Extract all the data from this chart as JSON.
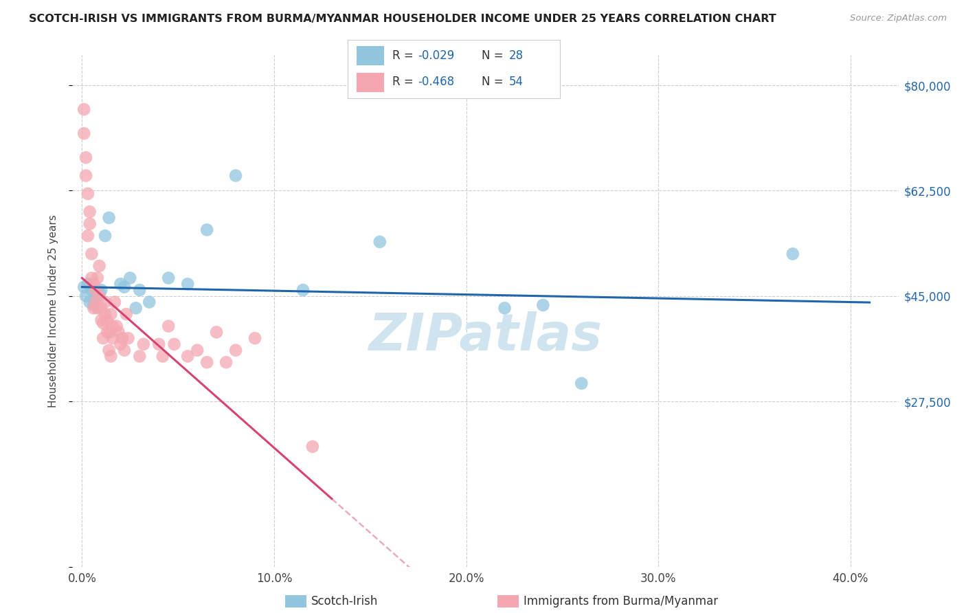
{
  "title": "SCOTCH-IRISH VS IMMIGRANTS FROM BURMA/MYANMAR HOUSEHOLDER INCOME UNDER 25 YEARS CORRELATION CHART",
  "source": "Source: ZipAtlas.com",
  "ylabel": "Householder Income Under 25 years",
  "xlabel_tick_vals": [
    0.0,
    0.1,
    0.2,
    0.3,
    0.4
  ],
  "xlabel_ticks": [
    "0.0%",
    "10.0%",
    "20.0%",
    "30.0%",
    "40.0%"
  ],
  "ylabel_tick_vals": [
    0,
    27500,
    45000,
    62500,
    80000
  ],
  "ylabel_ticks": [
    "",
    "$27,500",
    "$45,000",
    "$62,500",
    "$80,000"
  ],
  "ylim": [
    0,
    85000
  ],
  "xlim": [
    -0.005,
    0.425
  ],
  "legend1_label": "Scotch-Irish",
  "legend2_label": "Immigrants from Burma/Myanmar",
  "r1": -0.029,
  "n1": 28,
  "r2": -0.468,
  "n2": 54,
  "blue_color": "#92c5de",
  "pink_color": "#f4a7b0",
  "blue_line_color": "#2166ac",
  "pink_line_color": "#d6436e",
  "grid_color": "#cccccc",
  "watermark_color": "#d0e4f0",
  "blue_scatter_x": [
    0.001,
    0.002,
    0.003,
    0.004,
    0.005,
    0.006,
    0.007,
    0.008,
    0.009,
    0.01,
    0.012,
    0.014,
    0.02,
    0.022,
    0.025,
    0.028,
    0.03,
    0.035,
    0.045,
    0.055,
    0.065,
    0.08,
    0.115,
    0.155,
    0.22,
    0.24,
    0.26,
    0.37
  ],
  "blue_scatter_y": [
    46500,
    45000,
    47000,
    44000,
    46000,
    43500,
    46000,
    45000,
    45500,
    46000,
    55000,
    58000,
    47000,
    46500,
    48000,
    43000,
    46000,
    44000,
    48000,
    47000,
    56000,
    65000,
    46000,
    54000,
    43000,
    43500,
    30500,
    52000
  ],
  "pink_scatter_x": [
    0.001,
    0.001,
    0.002,
    0.002,
    0.003,
    0.003,
    0.004,
    0.004,
    0.005,
    0.005,
    0.006,
    0.006,
    0.007,
    0.007,
    0.008,
    0.008,
    0.009,
    0.009,
    0.01,
    0.01,
    0.011,
    0.011,
    0.012,
    0.012,
    0.013,
    0.013,
    0.014,
    0.014,
    0.015,
    0.015,
    0.016,
    0.016,
    0.017,
    0.018,
    0.019,
    0.02,
    0.021,
    0.022,
    0.023,
    0.024,
    0.03,
    0.032,
    0.04,
    0.042,
    0.045,
    0.048,
    0.055,
    0.06,
    0.065,
    0.07,
    0.075,
    0.08,
    0.09,
    0.12
  ],
  "pink_scatter_y": [
    76000,
    72000,
    68000,
    65000,
    55000,
    62000,
    59000,
    57000,
    52000,
    48000,
    47000,
    43000,
    46000,
    44000,
    43000,
    48000,
    45000,
    50000,
    43000,
    41000,
    40500,
    38000,
    44000,
    42000,
    41000,
    39000,
    36000,
    39000,
    35000,
    42000,
    40000,
    38000,
    44000,
    40000,
    39000,
    37000,
    38000,
    36000,
    42000,
    38000,
    35000,
    37000,
    37000,
    35000,
    40000,
    37000,
    35000,
    36000,
    34000,
    39000,
    34000,
    36000,
    38000,
    20000
  ]
}
